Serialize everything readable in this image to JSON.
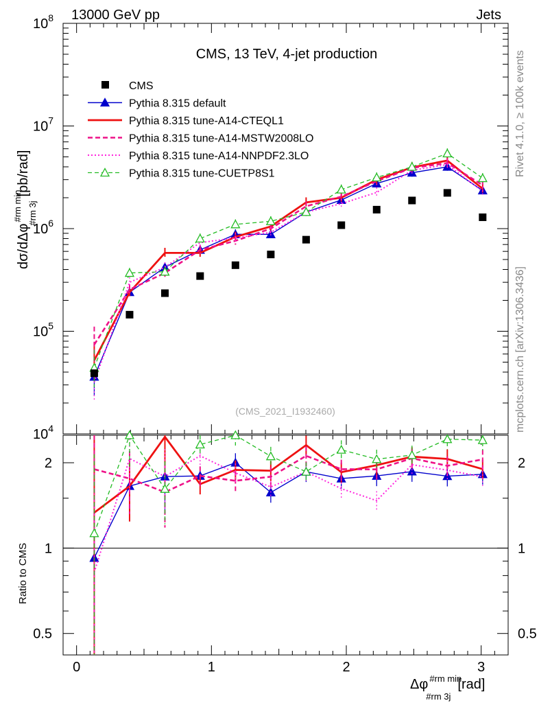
{
  "header": {
    "left": "13000 GeV pp",
    "right": "Jets"
  },
  "side_labels": {
    "rivet": "Rivet 4.1.0, ≥ 100k events",
    "mcplots": "mcplots.cern.ch [arXiv:1306.3436]"
  },
  "colors": {
    "cms": "#000000",
    "default": "#0000cc",
    "cteql1": "#ee1111",
    "mstw": "#ee1188",
    "nnpdf": "#ff22dd",
    "cuetp8s1": "#22bb22"
  },
  "chart_data": {
    "type": "line",
    "title": "CMS, 13 TeV, 4-jet production",
    "watermark": "(CMS_2021_I1932460)",
    "xlabel": {
      "main": "Δφ",
      "sup": "#rm min",
      "sub": "#rm 3j",
      "unit": "[rad]"
    },
    "ylabel": {
      "main": "dσ/dΔφ",
      "sup": "#rm min",
      "sub": "#rm 3j",
      "unit": "[pb/rad]"
    },
    "ratio_ylabel": "Ratio to CMS",
    "xlim": [
      -0.1,
      3.2
    ],
    "ylim": [
      10000,
      100000000
    ],
    "ratio_ylim": [
      0.42,
      2.5
    ],
    "x_ticks": [
      "0",
      "1",
      "2",
      "3"
    ],
    "y_ticks": [
      {
        "base": "10",
        "exp": "4"
      },
      {
        "base": "10",
        "exp": "5"
      },
      {
        "base": "10",
        "exp": "6"
      },
      {
        "base": "10",
        "exp": "7"
      },
      {
        "base": "10",
        "exp": "8"
      }
    ],
    "ratio_ticks": [
      "0.5",
      "1",
      "2"
    ],
    "x": [
      0.131,
      0.393,
      0.655,
      0.916,
      1.178,
      1.44,
      1.702,
      1.963,
      2.225,
      2.487,
      2.749,
      3.011
    ],
    "series": [
      {
        "key": "cms",
        "name": "CMS",
        "style": "marker",
        "color": "#000000",
        "values": [
          39000,
          145000,
          235000,
          345000,
          440000,
          560000,
          780000,
          1080000,
          1530000,
          1880000,
          2230000,
          1290000
        ]
      },
      {
        "key": "default",
        "name": "Pythia 8.315 default",
        "style": "solid-thin",
        "color": "#0000cc",
        "marker": "filled-triangle",
        "values": [
          36000,
          240000,
          420000,
          620000,
          880000,
          880000,
          1450000,
          1900000,
          2750000,
          3500000,
          4000000,
          2350000
        ]
      },
      {
        "key": "cteql1",
        "name": "Pythia 8.315 tune-A14-CTEQL1",
        "style": "solid-thick",
        "color": "#ee1111",
        "values": [
          52000,
          240000,
          580000,
          580000,
          830000,
          1050000,
          1800000,
          2000000,
          3000000,
          3950000,
          4600000,
          2450000
        ]
      },
      {
        "key": "mstw",
        "name": "Pythia 8.315 tune-A14-MSTW2008LO",
        "style": "dashed",
        "color": "#ee1188",
        "values": [
          74000,
          255000,
          370000,
          620000,
          760000,
          1000000,
          1650000,
          2050000,
          2900000,
          3900000,
          4350000,
          2650000
        ]
      },
      {
        "key": "nnpdf",
        "name": "Pythia 8.315 tune-A14-NNPDF2.3LO",
        "style": "dotted",
        "color": "#ff22dd",
        "values": [
          32000,
          300000,
          420000,
          730000,
          810000,
          920000,
          1450000,
          1750000,
          2250000,
          3700000,
          4200000,
          2300000
        ]
      },
      {
        "key": "cuetp8s1",
        "name": "Pythia 8.315 tune-CUETP8S1",
        "style": "dashed-thin",
        "color": "#22bb22",
        "marker": "open-triangle",
        "values": [
          44000,
          370000,
          380000,
          800000,
          1100000,
          1180000,
          1450000,
          2400000,
          3150000,
          4000000,
          5400000,
          3100000
        ]
      }
    ]
  }
}
